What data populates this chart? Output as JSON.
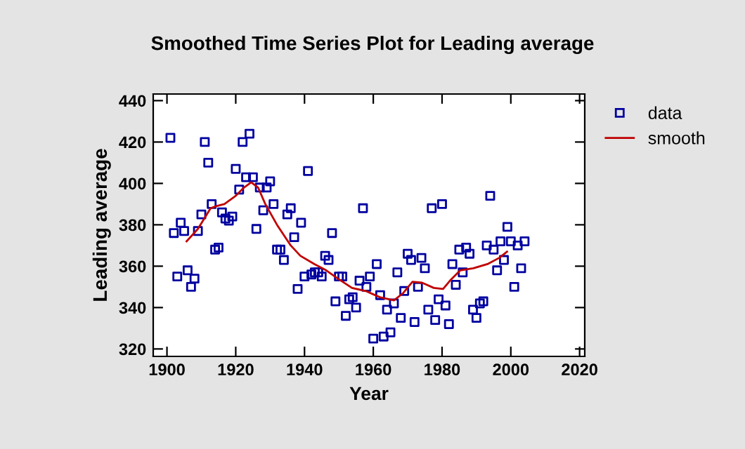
{
  "chart_data": {
    "type": "scatter",
    "title": "Smoothed Time Series Plot for Leading average",
    "xlabel": "Year",
    "ylabel": "Leading average",
    "xlim": [
      1896,
      2021.5
    ],
    "ylim": [
      316.4,
      443.2
    ],
    "xticks": [
      1900,
      1920,
      1940,
      1960,
      1980,
      2000,
      2020
    ],
    "yticks": [
      320,
      340,
      360,
      380,
      400,
      420,
      440
    ],
    "grid": false,
    "legend": "right",
    "series": [
      {
        "name": "data",
        "marker": "square",
        "color": "#0000a0",
        "x": [
          1901,
          1902,
          1903,
          1904,
          1905,
          1906,
          1907,
          1908,
          1909,
          1910,
          1911,
          1912,
          1913,
          1914,
          1915,
          1916,
          1917,
          1918,
          1919,
          1920,
          1921,
          1922,
          1923,
          1924,
          1925,
          1926,
          1927,
          1928,
          1929,
          1930,
          1931,
          1932,
          1933,
          1934,
          1935,
          1936,
          1937,
          1938,
          1939,
          1940,
          1941,
          1942,
          1943,
          1944,
          1945,
          1946,
          1947,
          1948,
          1949,
          1950,
          1951,
          1952,
          1953,
          1954,
          1955,
          1956,
          1957,
          1958,
          1959,
          1960,
          1961,
          1962,
          1963,
          1964,
          1965,
          1966,
          1967,
          1968,
          1969,
          1970,
          1971,
          1972,
          1973,
          1974,
          1975,
          1976,
          1977,
          1978,
          1979,
          1980,
          1981,
          1982,
          1983,
          1984,
          1985,
          1986,
          1987,
          1988,
          1989,
          1990,
          1991,
          1992,
          1993,
          1994,
          1995,
          1996,
          1997,
          1998,
          1999,
          2000,
          2001,
          2002,
          2003,
          2004
        ],
        "values": [
          422,
          376,
          355,
          381,
          377,
          358,
          350,
          354,
          377,
          385,
          420,
          410,
          390,
          368,
          369,
          386,
          383,
          382,
          384,
          407,
          397,
          420,
          403,
          424,
          403,
          378,
          398,
          387,
          398,
          401,
          390,
          368,
          368,
          363,
          385,
          388,
          374,
          349,
          381,
          355,
          406,
          356,
          357,
          357,
          355,
          365,
          363,
          376,
          343,
          355,
          355,
          336,
          344,
          345,
          340,
          353,
          388,
          350,
          355,
          325,
          361,
          346,
          326,
          339,
          328,
          342,
          357,
          335,
          348,
          366,
          363,
          333,
          350,
          364,
          359,
          339,
          388,
          334,
          344,
          390,
          341,
          332,
          361,
          351,
          368,
          357,
          369,
          366,
          339,
          335,
          342,
          343,
          370,
          394,
          368,
          358,
          372,
          363,
          379,
          372,
          350,
          370,
          359,
          372
        ]
      },
      {
        "name": "smooth",
        "type": "line",
        "marker": "none",
        "line_style": "solid",
        "color": "#c00000",
        "x": [
          1905.7,
          1909,
          1912.7,
          1914.3,
          1916.7,
          1920,
          1922.4,
          1924.5,
          1926.5,
          1928.6,
          1932,
          1936,
          1938.8,
          1942.9,
          1946.3,
          1949.7,
          1953.8,
          1957.8,
          1961.9,
          1966,
          1968.7,
          1971.4,
          1974.2,
          1977.6,
          1980.3,
          1982.3,
          1985.3,
          1989.1,
          1993.2,
          1996.6,
          1998.9
        ],
        "values": [
          372,
          378,
          388,
          389,
          390,
          394,
          398,
          400.5,
          398,
          390,
          380,
          370,
          365,
          361,
          358,
          354,
          349.5,
          348,
          345,
          343.5,
          347,
          352.5,
          352,
          349.5,
          349,
          353,
          358,
          359,
          361,
          364,
          367
        ]
      }
    ]
  }
}
